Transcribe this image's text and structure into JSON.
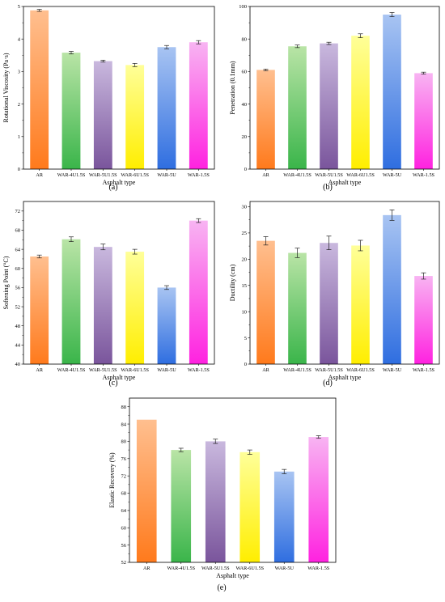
{
  "categories": [
    "AR",
    "WAR-4U1.5S",
    "WAR-5U1.5S",
    "WAR-6U1.5S",
    "WAR-5U",
    "WAR-1.5S"
  ],
  "colors": [
    {
      "top": "#ffbf8f",
      "bottom": "#ff7a1c"
    },
    {
      "top": "#b9e4a6",
      "bottom": "#3ab54a"
    },
    {
      "top": "#c9b8de",
      "bottom": "#7a559c"
    },
    {
      "top": "#ffff99",
      "bottom": "#ffee00"
    },
    {
      "top": "#a8c4f2",
      "bottom": "#2f6ee0"
    },
    {
      "top": "#f8b4f2",
      "bottom": "#ff22e0"
    }
  ],
  "chart_data": [
    {
      "type": "bar",
      "panel_label": "(a)",
      "xlabel": "Asphalt type",
      "ylabel": "Rotational Viscosity (Pa·s)",
      "ylim": [
        0,
        5
      ],
      "yticks": [
        "0",
        "1",
        "2",
        "3",
        "4",
        "5"
      ],
      "categories": [
        "AR",
        "WAR-4U1.5S",
        "WAR-5U1.5S",
        "WAR-6U1.5S",
        "WAR-5U",
        "WAR-1.5S"
      ],
      "values": [
        4.88,
        3.58,
        3.32,
        3.2,
        3.75,
        3.9
      ],
      "errors": [
        0.03,
        0.04,
        0.03,
        0.05,
        0.05,
        0.05
      ]
    },
    {
      "type": "bar",
      "panel_label": "(b)",
      "xlabel": "Asphalt type",
      "ylabel": "Penetration (0.1mm)",
      "ylim": [
        0,
        100
      ],
      "yticks": [
        "0",
        "20",
        "40",
        "60",
        "80",
        "100"
      ],
      "categories": [
        "AR",
        "WAR-4U1.5S",
        "WAR-5U1.5S",
        "WAR-6U1.5S",
        "WAR-5U",
        "WAR-1.5S"
      ],
      "values": [
        61,
        75.5,
        77.3,
        82,
        95,
        59
      ],
      "errors": [
        0.5,
        0.8,
        0.7,
        1.2,
        1.3,
        0.6
      ]
    },
    {
      "type": "bar",
      "panel_label": "(c)",
      "xlabel": "Asphalt type",
      "ylabel": "Softening Point (°C)",
      "ylim": [
        40,
        74
      ],
      "yticks": [
        "40",
        "44",
        "48",
        "52",
        "56",
        "60",
        "64",
        "68",
        "72"
      ],
      "categories": [
        "AR",
        "WAR-4U1.5S",
        "WAR-5U1.5S",
        "WAR-6U1.5S",
        "WAR-5U",
        "WAR-1.5S"
      ],
      "values": [
        62.5,
        66.1,
        64.5,
        63.5,
        56,
        70
      ],
      "errors": [
        0.3,
        0.5,
        0.6,
        0.5,
        0.4,
        0.4
      ]
    },
    {
      "type": "bar",
      "panel_label": "(d)",
      "xlabel": "Asphalt type",
      "ylabel": "Ductility (cm)",
      "ylim": [
        0,
        31
      ],
      "yticks": [
        "0",
        "5",
        "10",
        "15",
        "20",
        "25",
        "30"
      ],
      "categories": [
        "AR",
        "WAR-4U1.5S",
        "WAR-5U1.5S",
        "WAR-6U1.5S",
        "WAR-5U",
        "WAR-1.5S"
      ],
      "values": [
        23.5,
        21.2,
        23.1,
        22.6,
        28.4,
        16.8
      ],
      "errors": [
        0.8,
        0.9,
        1.3,
        1.0,
        1.0,
        0.6
      ]
    },
    {
      "type": "bar",
      "panel_label": "(e)",
      "xlabel": "Asphalt type",
      "ylabel": "Elastic Recovery (%)",
      "ylim": [
        52,
        90
      ],
      "yticks": [
        "52",
        "56",
        "60",
        "64",
        "68",
        "72",
        "76",
        "80",
        "84",
        "88"
      ],
      "categories": [
        "AR",
        "WAR-4U1.5S",
        "WAR-5U1.5S",
        "WAR-6U1.5S",
        "WAR-5U",
        "WAR-1.5S"
      ],
      "values": [
        85,
        78,
        80,
        77.5,
        73,
        81
      ],
      "errors": [
        0,
        0.4,
        0.5,
        0.5,
        0.5,
        0.3
      ]
    }
  ]
}
